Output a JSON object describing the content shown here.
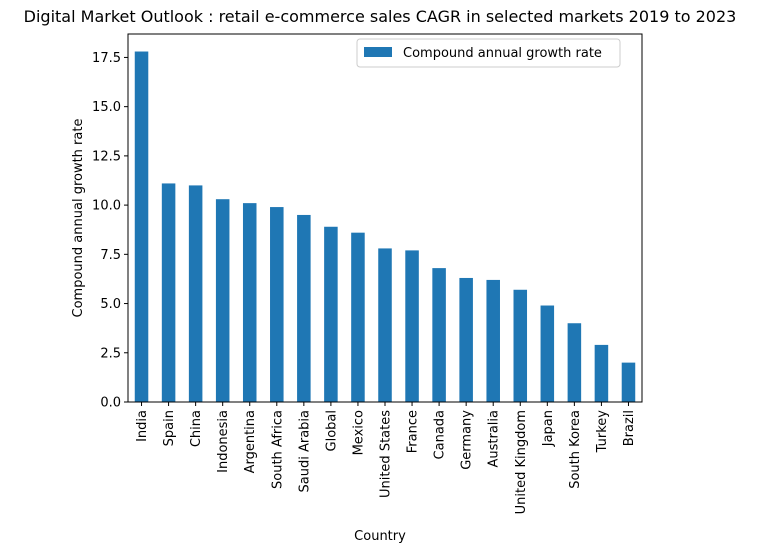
{
  "chart_data": {
    "type": "bar",
    "title": "Digital Market Outlook : retail e-commerce sales CAGR in selected markets 2019 to 2023",
    "xlabel": "Country",
    "ylabel": "Compound annual growth rate",
    "categories": [
      "India",
      "Spain",
      "China",
      "Indonesia",
      "Argentina",
      "South Africa",
      "Saudi Arabia",
      "Global",
      "Mexico",
      "United States",
      "France",
      "Canada",
      "Germany",
      "Australia",
      "United Kingdom",
      "Japan",
      "South Korea",
      "Turkey",
      "Brazil"
    ],
    "series": [
      {
        "name": "Compound annual growth rate",
        "color": "#1f77b4",
        "values": [
          17.8,
          11.1,
          11.0,
          10.3,
          10.1,
          9.9,
          9.5,
          8.9,
          8.6,
          7.8,
          7.7,
          6.8,
          6.3,
          6.2,
          5.7,
          4.9,
          4.0,
          2.9,
          2.0
        ]
      }
    ],
    "ylim": [
      0,
      18.69
    ],
    "yticks": [
      "0.0",
      "2.5",
      "5.0",
      "7.5",
      "10.0",
      "12.5",
      "15.0",
      "17.5"
    ],
    "ytick_values": [
      0,
      2.5,
      5.0,
      7.5,
      10.0,
      12.5,
      15.0,
      17.5
    ],
    "grid": false,
    "legend_position": "top-right"
  }
}
